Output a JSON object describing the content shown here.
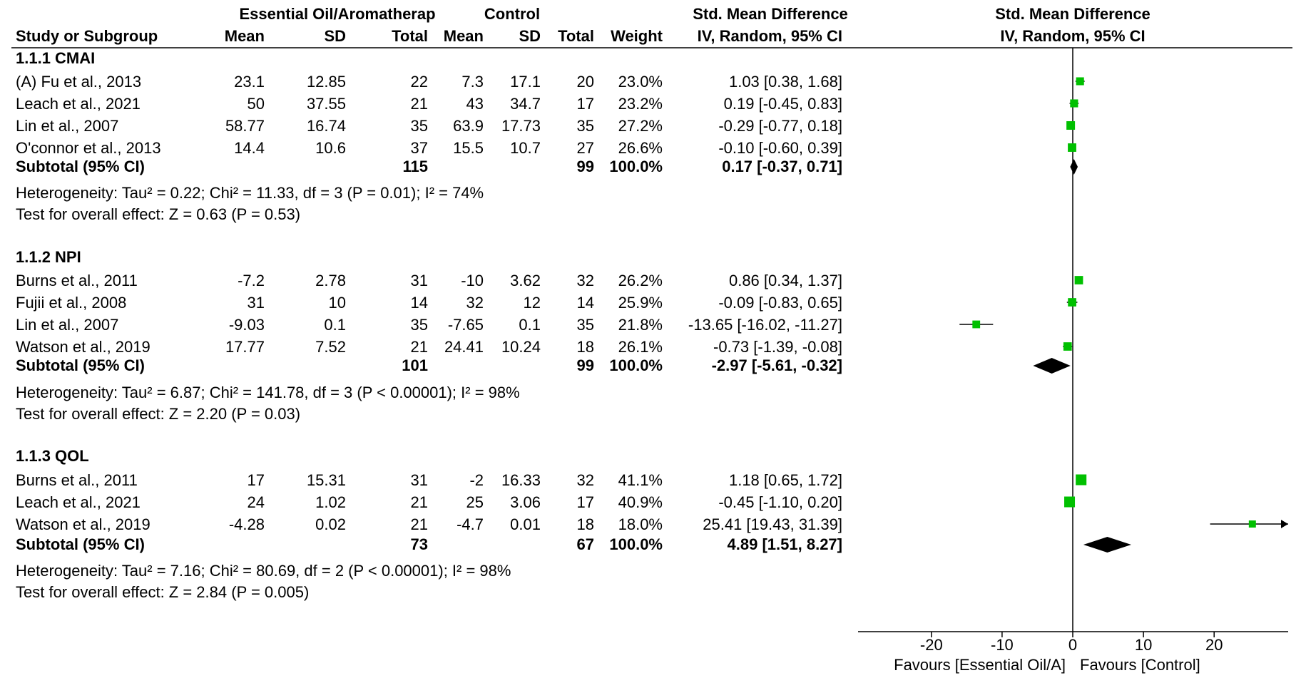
{
  "chart_data": {
    "type": "forest",
    "header": {
      "group1": "Essential Oil/Aromatherap",
      "group2": "Control",
      "smd_table": "Std. Mean Difference",
      "smd_plot": "Std. Mean Difference",
      "col_study": "Study or Subgroup",
      "col_mean1": "Mean",
      "col_sd1": "SD",
      "col_total1": "Total",
      "col_mean2": "Mean",
      "col_sd2": "SD",
      "col_total2": "Total",
      "col_weight": "Weight",
      "col_method": "IV, Random, 95% CI",
      "plot_method": "IV, Random, 95% CI"
    },
    "subgroups": [
      {
        "title": "1.1.1 CMAI",
        "studies": [
          {
            "study": "(A) Fu et al., 2013",
            "mean1": "23.1",
            "sd1": "12.85",
            "n1": "22",
            "mean2": "7.3",
            "sd2": "17.1",
            "n2": "20",
            "weight": "23.0%",
            "ci_text": "1.03 [0.38, 1.68]",
            "est": 1.03,
            "lo": 0.38,
            "hi": 1.68
          },
          {
            "study": "Leach et al., 2021",
            "mean1": "50",
            "sd1": "37.55",
            "n1": "21",
            "mean2": "43",
            "sd2": "34.7",
            "n2": "17",
            "weight": "23.2%",
            "ci_text": "0.19 [-0.45, 0.83]",
            "est": 0.19,
            "lo": -0.45,
            "hi": 0.83
          },
          {
            "study": "Lin et al., 2007",
            "mean1": "58.77",
            "sd1": "16.74",
            "n1": "35",
            "mean2": "63.9",
            "sd2": "17.73",
            "n2": "35",
            "weight": "27.2%",
            "ci_text": "-0.29 [-0.77, 0.18]",
            "est": -0.29,
            "lo": -0.77,
            "hi": 0.18
          },
          {
            "study": "O'connor et al., 2013",
            "mean1": "14.4",
            "sd1": "10.6",
            "n1": "37",
            "mean2": "15.5",
            "sd2": "10.7",
            "n2": "27",
            "weight": "26.6%",
            "ci_text": "-0.10 [-0.60, 0.39]",
            "est": -0.1,
            "lo": -0.6,
            "hi": 0.39
          }
        ],
        "subtotal": {
          "label": "Subtotal (95% CI)",
          "n1": "115",
          "n2": "99",
          "weight": "100.0%",
          "ci_text": "0.17 [-0.37, 0.71]",
          "est": 0.17,
          "lo": -0.37,
          "hi": 0.71
        },
        "heterogeneity": "Heterogeneity: Tau² = 0.22; Chi² = 11.33, df = 3 (P = 0.01); I² = 74%",
        "overall": "Test for overall effect: Z = 0.63 (P = 0.53)"
      },
      {
        "title": "1.1.2 NPI",
        "studies": [
          {
            "study": "Burns et al., 2011",
            "mean1": "-7.2",
            "sd1": "2.78",
            "n1": "31",
            "mean2": "-10",
            "sd2": "3.62",
            "n2": "32",
            "weight": "26.2%",
            "ci_text": "0.86 [0.34, 1.37]",
            "est": 0.86,
            "lo": 0.34,
            "hi": 1.37
          },
          {
            "study": "Fujii et al., 2008",
            "mean1": "31",
            "sd1": "10",
            "n1": "14",
            "mean2": "32",
            "sd2": "12",
            "n2": "14",
            "weight": "25.9%",
            "ci_text": "-0.09 [-0.83, 0.65]",
            "est": -0.09,
            "lo": -0.83,
            "hi": 0.65
          },
          {
            "study": "Lin et al., 2007",
            "mean1": "-9.03",
            "sd1": "0.1",
            "n1": "35",
            "mean2": "-7.65",
            "sd2": "0.1",
            "n2": "35",
            "weight": "21.8%",
            "ci_text": "-13.65 [-16.02, -11.27]",
            "est": -13.65,
            "lo": -16.02,
            "hi": -11.27
          },
          {
            "study": "Watson et al., 2019",
            "mean1": "17.77",
            "sd1": "7.52",
            "n1": "21",
            "mean2": "24.41",
            "sd2": "10.24",
            "n2": "18",
            "weight": "26.1%",
            "ci_text": "-0.73 [-1.39, -0.08]",
            "est": -0.73,
            "lo": -1.39,
            "hi": -0.08
          }
        ],
        "subtotal": {
          "label": "Subtotal (95% CI)",
          "n1": "101",
          "n2": "99",
          "weight": "100.0%",
          "ci_text": "-2.97 [-5.61, -0.32]",
          "est": -2.97,
          "lo": -5.61,
          "hi": -0.32
        },
        "heterogeneity": "Heterogeneity: Tau² = 6.87; Chi² = 141.78, df = 3 (P < 0.00001); I² = 98%",
        "overall": "Test for overall effect: Z = 2.20 (P = 0.03)"
      },
      {
        "title": "1.1.3 QOL",
        "studies": [
          {
            "study": "Burns et al., 2011",
            "mean1": "17",
            "sd1": "15.31",
            "n1": "31",
            "mean2": "-2",
            "sd2": "16.33",
            "n2": "32",
            "weight": "41.1%",
            "ci_text": "1.18 [0.65, 1.72]",
            "est": 1.18,
            "lo": 0.65,
            "hi": 1.72
          },
          {
            "study": "Leach et al., 2021",
            "mean1": "24",
            "sd1": "1.02",
            "n1": "21",
            "mean2": "25",
            "sd2": "3.06",
            "n2": "17",
            "weight": "40.9%",
            "ci_text": "-0.45 [-1.10, 0.20]",
            "est": -0.45,
            "lo": -1.1,
            "hi": 0.2
          },
          {
            "study": "Watson et al., 2019",
            "mean1": "-4.28",
            "sd1": "0.02",
            "n1": "21",
            "mean2": "-4.7",
            "sd2": "0.01",
            "n2": "18",
            "weight": "18.0%",
            "ci_text": "25.41 [19.43, 31.39]",
            "est": 25.41,
            "lo": 19.43,
            "hi": 31.39
          }
        ],
        "subtotal": {
          "label": "Subtotal (95% CI)",
          "n1": "73",
          "n2": "67",
          "weight": "100.0%",
          "ci_text": "4.89 [1.51, 8.27]",
          "est": 4.89,
          "lo": 1.51,
          "hi": 8.27
        },
        "heterogeneity": "Heterogeneity: Tau² = 7.16; Chi² = 80.69, df = 2 (P < 0.00001); I² = 98%",
        "overall": "Test for overall effect: Z = 2.84 (P = 0.005)"
      }
    ],
    "axis": {
      "xlim": [
        -30,
        30
      ],
      "ticks": [
        -20,
        -10,
        0,
        10,
        20
      ],
      "tick_labels": [
        "-20",
        "-10",
        "0",
        "10",
        "20"
      ],
      "favours_left": "Favours [Essential Oil/A]",
      "favours_right": "Favours [Control]"
    },
    "colors": {
      "marker": "#00c000",
      "diamond": "#000000",
      "line": "#000000"
    }
  }
}
